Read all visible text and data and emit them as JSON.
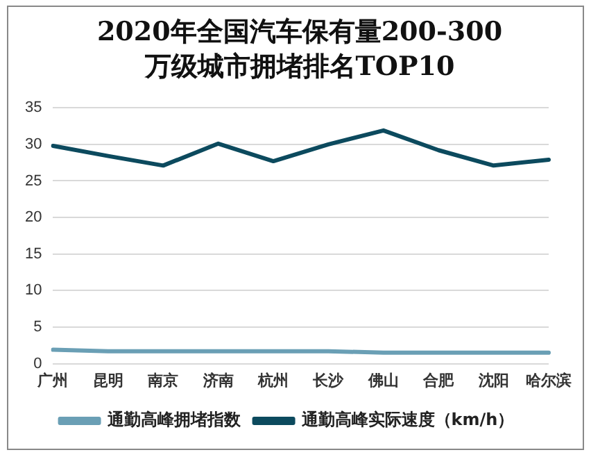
{
  "chart_data": {
    "type": "line",
    "title": "2020年全国汽车保有量200-300万级城市拥堵排名TOP10",
    "categories": [
      "广州",
      "昆明",
      "南京",
      "济南",
      "杭州",
      "长沙",
      "佛山",
      "合肥",
      "沈阳",
      "哈尔滨"
    ],
    "series": [
      {
        "name": "通勤高峰拥堵指数",
        "color": "#6a9fb5",
        "values": [
          1.9,
          1.7,
          1.7,
          1.7,
          1.7,
          1.7,
          1.5,
          1.5,
          1.5,
          1.5
        ]
      },
      {
        "name": "通勤高峰实际速度（km/h）",
        "color": "#0c4a5e",
        "values": [
          29.8,
          28.4,
          27.1,
          30.1,
          27.7,
          30.0,
          31.9,
          29.2,
          27.1,
          27.9
        ]
      }
    ],
    "ylim": [
      0,
      35
    ],
    "yticks": [
      0,
      5,
      10,
      15,
      20,
      25,
      30,
      35
    ],
    "grid": "y",
    "legend": "bottom",
    "marker": "none"
  }
}
